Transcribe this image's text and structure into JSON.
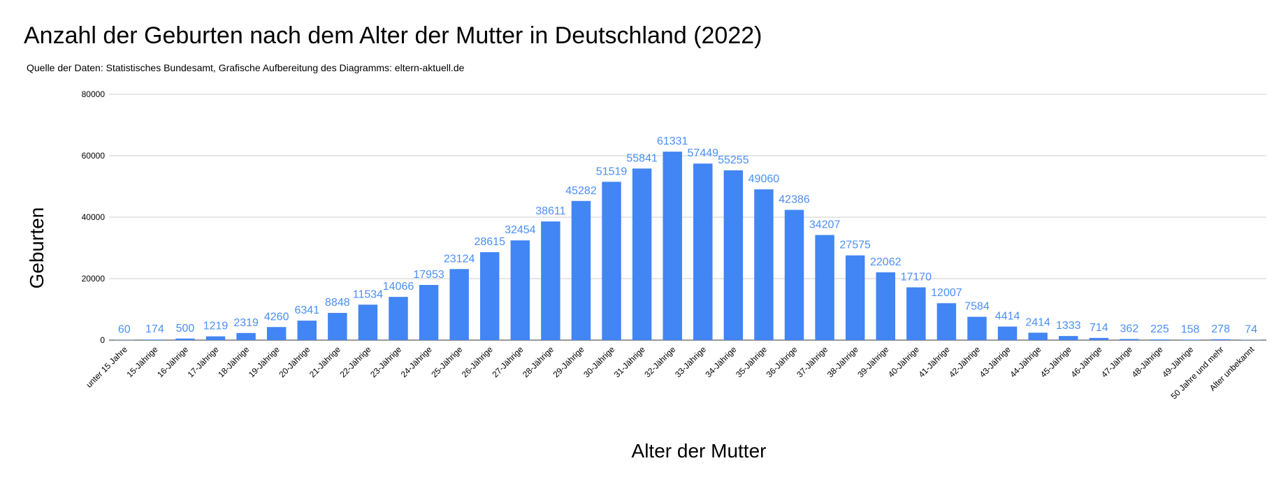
{
  "chart_data": {
    "type": "bar",
    "title": "Anzahl der Geburten nach dem Alter der Mutter in Deutschland (2022)",
    "subtitle": "Quelle der Daten: Statistisches Bundesamt, Grafische Aufbereitung des Diagramms: eltern-aktuell.de",
    "xlabel": "Alter der Mutter",
    "ylabel": "Geburten",
    "ylim": [
      0,
      80000
    ],
    "yticks": [
      "0",
      "20000",
      "40000",
      "60000",
      "80000"
    ],
    "grid": true,
    "legend": "none",
    "bar_color": "#4285f4",
    "label_color": "#4a8ff5",
    "categories": [
      "unter 15 Jahre",
      "15-Jährige",
      "16-Jährige",
      "17-Jährige",
      "18-Jährige",
      "19-Jährige",
      "20-Jährige",
      "21-Jährige",
      "22-Jährige",
      "23-Jährige",
      "24-Jährige",
      "25-Jährige",
      "26-Jährige",
      "27-Jährige",
      "28-Jährige",
      "29-Jährige",
      "30-Jährige",
      "31-Jährige",
      "32-Jährige",
      "33-Jährige",
      "34-Jährige",
      "35-Jährige",
      "36-Jährige",
      "37-Jährige",
      "38-Jährige",
      "39-Jährige",
      "40-Jährige",
      "41-Jährige",
      "42-Jährige",
      "43-Jährige",
      "44-Jährige",
      "45-Jährige",
      "46-Jährige",
      "47-Jährige",
      "48-Jährige",
      "49-Jährige",
      "50 Jahre und mehr",
      "Alter unbekannt"
    ],
    "values": [
      60,
      174,
      500,
      1219,
      2319,
      4260,
      6341,
      8848,
      11534,
      14066,
      17953,
      23124,
      28615,
      32454,
      38611,
      45282,
      51519,
      55841,
      61331,
      57449,
      55255,
      49060,
      42386,
      34207,
      27575,
      22062,
      17170,
      12007,
      7584,
      4414,
      2414,
      1333,
      714,
      362,
      225,
      158,
      278,
      74
    ]
  }
}
